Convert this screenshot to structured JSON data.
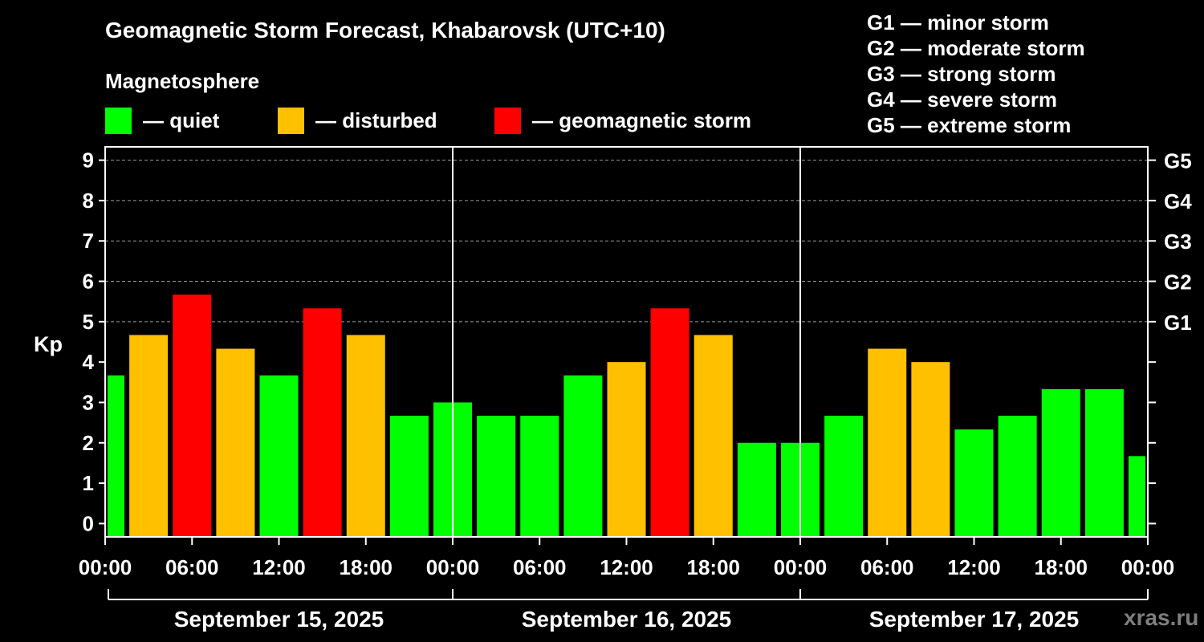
{
  "chart_data": {
    "type": "bar",
    "title": "Geomagnetic Storm Forecast, Khabarovsk (UTC+10)",
    "subtitle": "Magnetosphere",
    "ylabel": "Kp",
    "ylim": [
      -0.33,
      9.33
    ],
    "yticks": [
      "0",
      "1",
      "2",
      "3",
      "4",
      "5",
      "6",
      "7",
      "8",
      "9"
    ],
    "right_ticks": [
      {
        "kp": 5,
        "label": "G1"
      },
      {
        "kp": 6,
        "label": "G2"
      },
      {
        "kp": 7,
        "label": "G3"
      },
      {
        "kp": 8,
        "label": "G4"
      },
      {
        "kp": 9,
        "label": "G5"
      }
    ],
    "xticks": [
      "00:00",
      "06:00",
      "12:00",
      "18:00",
      "00:00",
      "06:00",
      "12:00",
      "18:00",
      "00:00",
      "06:00",
      "12:00",
      "18:00",
      "00:00"
    ],
    "days": [
      "September 15, 2025",
      "September 16, 2025",
      "September 17, 2025"
    ],
    "legend": [
      {
        "label": "— quiet",
        "color": "#00ff00"
      },
      {
        "label": "— disturbed",
        "color": "#ffc000"
      },
      {
        "label": "— geomagnetic storm",
        "color": "#ff0000"
      }
    ],
    "g_scale": [
      "G1 — minor storm",
      "G2 — moderate storm",
      "G3 — strong storm",
      "G4 — severe storm",
      "G5 — extreme storm"
    ],
    "values": [
      3.67,
      4.67,
      5.67,
      4.33,
      3.67,
      5.33,
      4.67,
      2.67,
      3.0,
      2.67,
      2.67,
      3.67,
      4.0,
      5.33,
      4.67,
      2.0,
      2.0,
      2.67,
      4.33,
      4.0,
      2.33,
      2.67,
      3.33,
      3.33,
      1.67
    ],
    "categories": [
      "quiet",
      "disturbed",
      "storm",
      "disturbed",
      "quiet",
      "storm",
      "disturbed",
      "quiet",
      "quiet",
      "quiet",
      "quiet",
      "quiet",
      "disturbed",
      "storm",
      "disturbed",
      "quiet",
      "quiet",
      "quiet",
      "disturbed",
      "disturbed",
      "quiet",
      "quiet",
      "quiet",
      "quiet",
      "quiet"
    ],
    "grid": true
  },
  "colors": {
    "quiet": "#00ff00",
    "disturbed": "#ffc000",
    "storm": "#ff0000"
  },
  "watermark": "xras.ru"
}
